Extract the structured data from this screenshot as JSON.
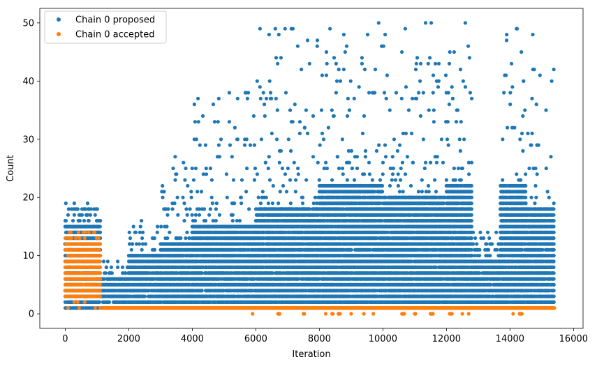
{
  "chart_data": {
    "type": "scatter",
    "xlabel": "Iteration",
    "ylabel": "Count",
    "xlim": [
      -800,
      16300
    ],
    "ylim": [
      -2.5,
      52.5
    ],
    "xticks": [
      0,
      2000,
      4000,
      6000,
      8000,
      10000,
      12000,
      14000,
      16000
    ],
    "yticks": [
      0,
      10,
      20,
      30,
      40,
      50
    ],
    "xtick_labels": [
      "0",
      "2000",
      "4000",
      "6000",
      "8000",
      "10000",
      "12000",
      "14000",
      "16000"
    ],
    "ytick_labels": [
      "0",
      "10",
      "20",
      "30",
      "40",
      "50"
    ],
    "grid": false,
    "legend_position": "top-left",
    "series": [
      {
        "name": "Chain 0 proposed",
        "color": "#1f77b4",
        "x_range": [
          0,
          15400
        ],
        "segments": [
          {
            "x": [
              0,
              1100
            ],
            "y_min": 1,
            "y_max": 19,
            "typical_max": 15
          },
          {
            "x": [
              1100,
              2000
            ],
            "y_min": 1,
            "y_max": 9,
            "typical_max": 6
          },
          {
            "x": [
              2000,
              3000
            ],
            "y_min": 1,
            "y_max": 16,
            "typical_max": 10
          },
          {
            "x": [
              3000,
              4000
            ],
            "y_min": 1,
            "y_max": 27,
            "typical_max": 12
          },
          {
            "x": [
              4000,
              6000
            ],
            "y_min": 1,
            "y_max": 38,
            "typical_max": 15
          },
          {
            "x": [
              6000,
              8000
            ],
            "y_min": 1,
            "y_max": 50,
            "typical_max": 18
          },
          {
            "x": [
              8000,
              10000
            ],
            "y_min": 1,
            "y_max": 50,
            "typical_max": 22
          },
          {
            "x": [
              10000,
              12000
            ],
            "y_min": 1,
            "y_max": 50,
            "typical_max": 20
          },
          {
            "x": [
              12000,
              12800
            ],
            "y_min": 1,
            "y_max": 50,
            "typical_max": 22
          },
          {
            "x": [
              12800,
              13700
            ],
            "y_min": 1,
            "y_max": 14,
            "typical_max": 9
          },
          {
            "x": [
              13700,
              14500
            ],
            "y_min": 1,
            "y_max": 50,
            "typical_max": 22
          },
          {
            "x": [
              14500,
              15400
            ],
            "y_min": 1,
            "y_max": 50,
            "typical_max": 18
          }
        ]
      },
      {
        "name": "Chain 0 accepted",
        "color": "#ff7f0e",
        "x_range": [
          0,
          15400
        ],
        "segments": [
          {
            "x": [
              0,
              1100
            ],
            "y_min": 1,
            "y_max": 14,
            "typical_max": 12
          },
          {
            "x": [
              1100,
              15400
            ],
            "y_min": 0,
            "y_max": 1,
            "typical_max": 1
          }
        ],
        "zero_value_x": [
          5900,
          6700,
          7500,
          8200,
          8400,
          8600,
          9000,
          9400,
          9700,
          10600,
          11000,
          11500,
          12100,
          12500,
          12700,
          14100,
          14300
        ]
      }
    ]
  }
}
